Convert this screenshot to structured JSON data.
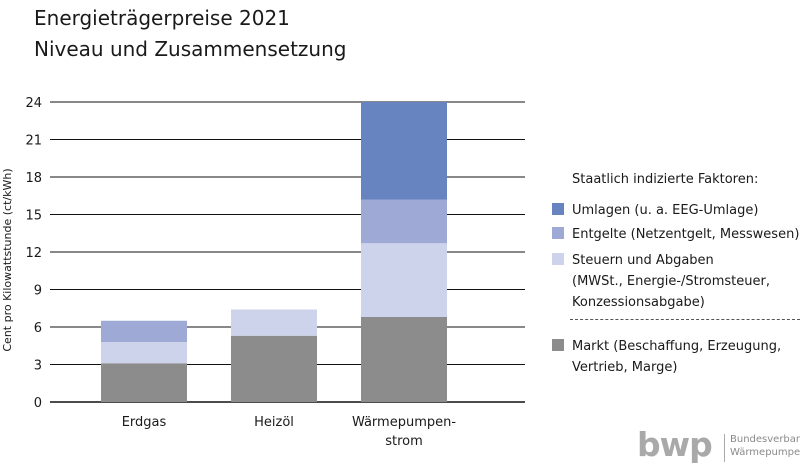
{
  "title": {
    "line1": "Energieträgerpreise 2021",
    "line2": "Niveau und Zusammensetzung"
  },
  "chart_data": {
    "type": "bar",
    "stacked": true,
    "categories": [
      "Erdgas",
      "Heizöl",
      "Wärmepumpen-\nstrom"
    ],
    "ylabel": "Cent pro Kilowattstunde (ct/kWh)",
    "xlabel": "",
    "ylim": [
      0,
      24
    ],
    "yticks": [
      0,
      3,
      6,
      9,
      12,
      15,
      18,
      21,
      24
    ],
    "grid": true,
    "series": [
      {
        "name": "Markt (Beschaffung, Erzeugung, Vertrieb, Marge)",
        "values": [
          3.1,
          5.3,
          6.8
        ],
        "color": "#8c8c8c"
      },
      {
        "name": "Steuern und Abgaben (MWSt., Energie-/Stromsteuer, Konzessionsabgabe)",
        "values": [
          1.7,
          2.1,
          5.9
        ],
        "color": "#cdd3ea"
      },
      {
        "name": "Entgelte (Netzentgelt, Messwesen)",
        "values": [
          1.7,
          0,
          3.5
        ],
        "color": "#9ea9d5"
      },
      {
        "name": "Umlagen (u. a. EEG-Umlage)",
        "values": [
          0,
          0,
          7.8
        ],
        "color": "#6784c0"
      }
    ]
  },
  "legend": {
    "heading": "Staatlich indizierte Faktoren:",
    "items": [
      {
        "label": "Umlagen (u. a. EEG-Umlage)",
        "color": "#6784c0"
      },
      {
        "label": "Entgelte (Netzentgelt, Messwesen)",
        "color": "#9ea9d5"
      },
      {
        "label": "Steuern und Abgaben\n(MWSt., Energie-/Stromsteuer,\nKonzessionsabgabe)",
        "color": "#cdd3ea"
      },
      {
        "label": "Markt (Beschaffung, Erzeugung,\nVertrieb, Marge)",
        "color": "#8c8c8c"
      }
    ]
  },
  "logo": {
    "mark": "bwp",
    "line1": "Bundesverband",
    "line2": "Wärmepumpe e.V."
  }
}
